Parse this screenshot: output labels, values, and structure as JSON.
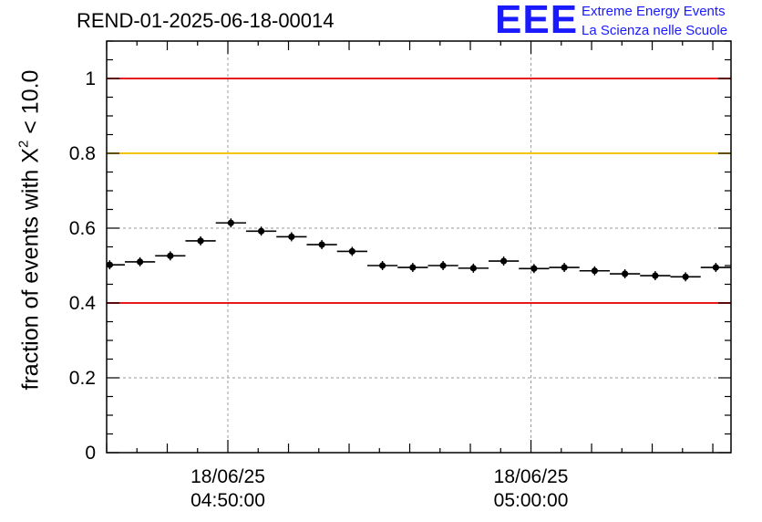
{
  "header": {
    "run_title": "REND-01-2025-06-18-00014",
    "logo_mark": "EEE",
    "logo_line1": "Extreme Energy Events",
    "logo_line2": "La Scienza nelle Scuole"
  },
  "chart_data": {
    "type": "scatter",
    "title": "REND-01-2025-06-18-00014",
    "ylabel_prefix": "fraction of events with ",
    "ylabel_symbol": "X",
    "ylabel_sup": "2",
    "ylabel_suffix": " < 10.0",
    "ylim": [
      0,
      1.1
    ],
    "yticks": [
      "0",
      "0.2",
      "0.4",
      "0.6",
      "0.8",
      "1"
    ],
    "ytick_values": [
      0,
      0.2,
      0.4,
      0.6,
      0.8,
      1.0
    ],
    "xlim_minutes": [
      44.0,
      64.6
    ],
    "xtick_labels": [
      {
        "date": "18/06/25",
        "time": "04:50:00",
        "minutes": 48.0
      },
      {
        "date": "18/06/25",
        "time": "05:00:00",
        "minutes": 58.0
      }
    ],
    "grid": true,
    "bin_width_minutes": 1.0,
    "x_minutes": [
      44.1,
      45.1,
      46.1,
      47.1,
      48.1,
      49.1,
      50.1,
      51.1,
      52.1,
      53.1,
      54.1,
      55.1,
      56.1,
      57.1,
      58.1,
      59.1,
      60.1,
      61.1,
      62.1,
      63.1,
      64.1
    ],
    "values": [
      0.502,
      0.51,
      0.526,
      0.566,
      0.614,
      0.592,
      0.577,
      0.556,
      0.538,
      0.5,
      0.495,
      0.5,
      0.493,
      0.512,
      0.492,
      0.495,
      0.486,
      0.478,
      0.473,
      0.47,
      0.495
    ],
    "reference_lines": [
      {
        "value": 1.0,
        "color": "#e8191c"
      },
      {
        "value": 0.8,
        "color": "#f5c400"
      },
      {
        "value": 0.4,
        "color": "#e8191c"
      }
    ],
    "marker_color": "#000000"
  }
}
